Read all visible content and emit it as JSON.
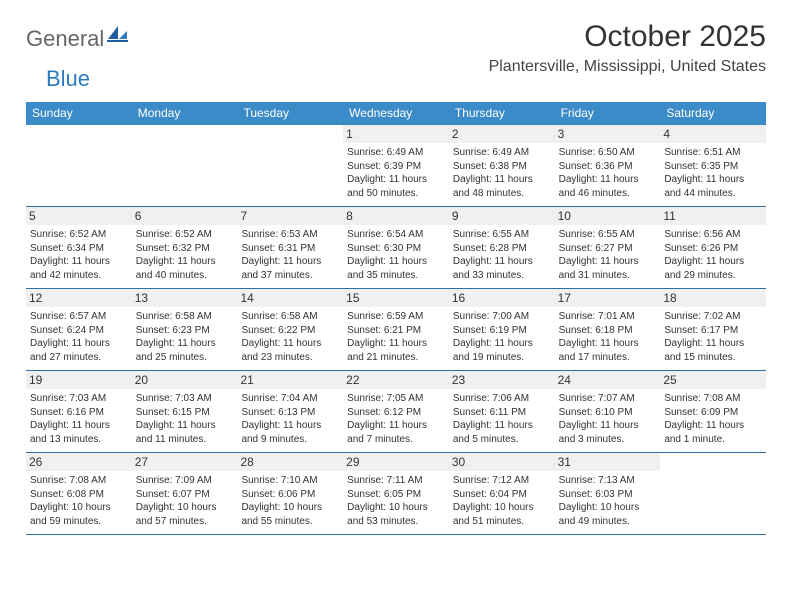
{
  "brand": {
    "part1": "General",
    "part2": "Blue"
  },
  "title": "October 2025",
  "location": "Plantersville, Mississippi, United States",
  "colors": {
    "header_bg": "#3b8bc9",
    "header_text": "#ffffff",
    "rule": "#2f6fa6",
    "daynum_bg": "#f0f0f0",
    "text": "#333333"
  },
  "day_headers": [
    "Sunday",
    "Monday",
    "Tuesday",
    "Wednesday",
    "Thursday",
    "Friday",
    "Saturday"
  ],
  "weeks": [
    [
      {
        "n": "",
        "sr": "",
        "ss": "",
        "dl": ""
      },
      {
        "n": "",
        "sr": "",
        "ss": "",
        "dl": ""
      },
      {
        "n": "",
        "sr": "",
        "ss": "",
        "dl": ""
      },
      {
        "n": "1",
        "sr": "6:49 AM",
        "ss": "6:39 PM",
        "dl": "11 hours and 50 minutes."
      },
      {
        "n": "2",
        "sr": "6:49 AM",
        "ss": "6:38 PM",
        "dl": "11 hours and 48 minutes."
      },
      {
        "n": "3",
        "sr": "6:50 AM",
        "ss": "6:36 PM",
        "dl": "11 hours and 46 minutes."
      },
      {
        "n": "4",
        "sr": "6:51 AM",
        "ss": "6:35 PM",
        "dl": "11 hours and 44 minutes."
      }
    ],
    [
      {
        "n": "5",
        "sr": "6:52 AM",
        "ss": "6:34 PM",
        "dl": "11 hours and 42 minutes."
      },
      {
        "n": "6",
        "sr": "6:52 AM",
        "ss": "6:32 PM",
        "dl": "11 hours and 40 minutes."
      },
      {
        "n": "7",
        "sr": "6:53 AM",
        "ss": "6:31 PM",
        "dl": "11 hours and 37 minutes."
      },
      {
        "n": "8",
        "sr": "6:54 AM",
        "ss": "6:30 PM",
        "dl": "11 hours and 35 minutes."
      },
      {
        "n": "9",
        "sr": "6:55 AM",
        "ss": "6:28 PM",
        "dl": "11 hours and 33 minutes."
      },
      {
        "n": "10",
        "sr": "6:55 AM",
        "ss": "6:27 PM",
        "dl": "11 hours and 31 minutes."
      },
      {
        "n": "11",
        "sr": "6:56 AM",
        "ss": "6:26 PM",
        "dl": "11 hours and 29 minutes."
      }
    ],
    [
      {
        "n": "12",
        "sr": "6:57 AM",
        "ss": "6:24 PM",
        "dl": "11 hours and 27 minutes."
      },
      {
        "n": "13",
        "sr": "6:58 AM",
        "ss": "6:23 PM",
        "dl": "11 hours and 25 minutes."
      },
      {
        "n": "14",
        "sr": "6:58 AM",
        "ss": "6:22 PM",
        "dl": "11 hours and 23 minutes."
      },
      {
        "n": "15",
        "sr": "6:59 AM",
        "ss": "6:21 PM",
        "dl": "11 hours and 21 minutes."
      },
      {
        "n": "16",
        "sr": "7:00 AM",
        "ss": "6:19 PM",
        "dl": "11 hours and 19 minutes."
      },
      {
        "n": "17",
        "sr": "7:01 AM",
        "ss": "6:18 PM",
        "dl": "11 hours and 17 minutes."
      },
      {
        "n": "18",
        "sr": "7:02 AM",
        "ss": "6:17 PM",
        "dl": "11 hours and 15 minutes."
      }
    ],
    [
      {
        "n": "19",
        "sr": "7:03 AM",
        "ss": "6:16 PM",
        "dl": "11 hours and 13 minutes."
      },
      {
        "n": "20",
        "sr": "7:03 AM",
        "ss": "6:15 PM",
        "dl": "11 hours and 11 minutes."
      },
      {
        "n": "21",
        "sr": "7:04 AM",
        "ss": "6:13 PM",
        "dl": "11 hours and 9 minutes."
      },
      {
        "n": "22",
        "sr": "7:05 AM",
        "ss": "6:12 PM",
        "dl": "11 hours and 7 minutes."
      },
      {
        "n": "23",
        "sr": "7:06 AM",
        "ss": "6:11 PM",
        "dl": "11 hours and 5 minutes."
      },
      {
        "n": "24",
        "sr": "7:07 AM",
        "ss": "6:10 PM",
        "dl": "11 hours and 3 minutes."
      },
      {
        "n": "25",
        "sr": "7:08 AM",
        "ss": "6:09 PM",
        "dl": "11 hours and 1 minute."
      }
    ],
    [
      {
        "n": "26",
        "sr": "7:08 AM",
        "ss": "6:08 PM",
        "dl": "10 hours and 59 minutes."
      },
      {
        "n": "27",
        "sr": "7:09 AM",
        "ss": "6:07 PM",
        "dl": "10 hours and 57 minutes."
      },
      {
        "n": "28",
        "sr": "7:10 AM",
        "ss": "6:06 PM",
        "dl": "10 hours and 55 minutes."
      },
      {
        "n": "29",
        "sr": "7:11 AM",
        "ss": "6:05 PM",
        "dl": "10 hours and 53 minutes."
      },
      {
        "n": "30",
        "sr": "7:12 AM",
        "ss": "6:04 PM",
        "dl": "10 hours and 51 minutes."
      },
      {
        "n": "31",
        "sr": "7:13 AM",
        "ss": "6:03 PM",
        "dl": "10 hours and 49 minutes."
      },
      {
        "n": "",
        "sr": "",
        "ss": "",
        "dl": ""
      }
    ]
  ],
  "labels": {
    "sunrise": "Sunrise:",
    "sunset": "Sunset:",
    "daylight": "Daylight:"
  }
}
